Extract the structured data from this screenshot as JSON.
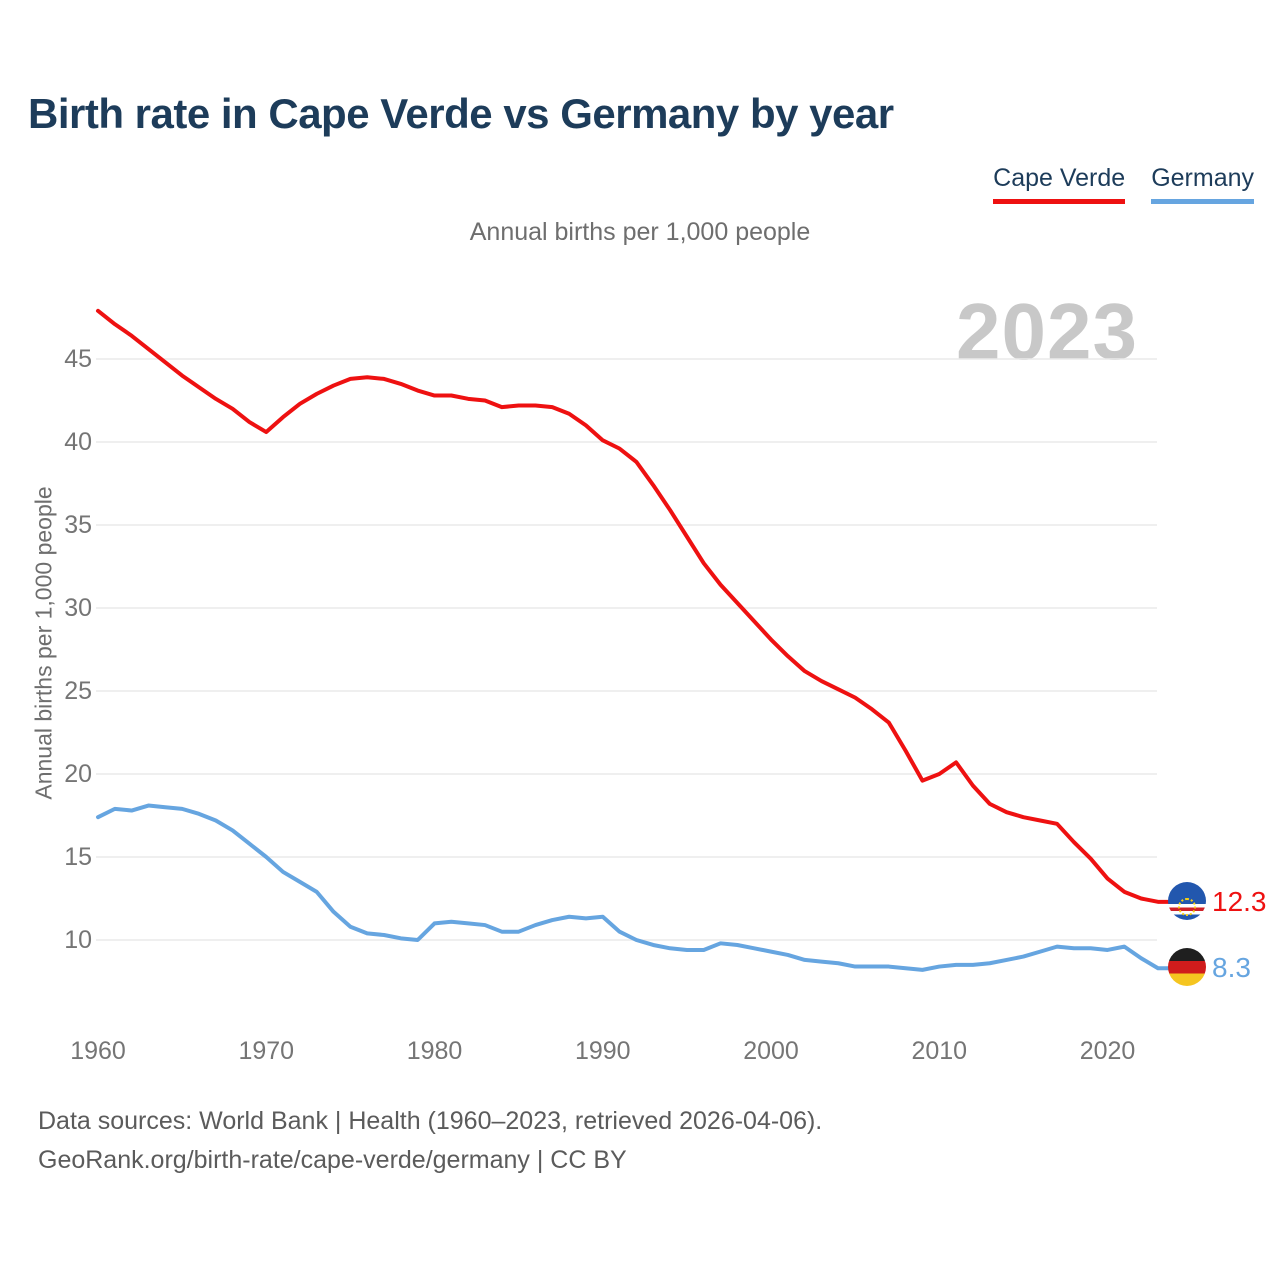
{
  "page": {
    "title": "Birth rate in Cape Verde vs Germany by year",
    "subtitle": "Annual births per 1,000 people",
    "watermark": "2023",
    "footer_line1": "Data sources: World Bank | Health (1960–2023, retrieved 2026-04-06).",
    "footer_line2": "GeoRank.org/birth-rate/cape-verde/germany | CC BY"
  },
  "legend": {
    "position": "top-right",
    "series1": {
      "label": "Cape Verde",
      "color": "#ee1111"
    },
    "series2": {
      "label": "Germany",
      "color": "#66a5e0"
    }
  },
  "end_labels": {
    "cape_verde": {
      "value": "12.3",
      "flag": "cape-verde-flag",
      "color": "#ee1111"
    },
    "germany": {
      "value": "8.3",
      "flag": "germany-flag",
      "color": "#66a5e0"
    }
  },
  "colors": {
    "title_navy": "#1d3c5a",
    "gridline": "#eaeaea",
    "tick_text": "#757575",
    "watermark_gray": "#c8c8c8"
  },
  "chart_data": {
    "type": "line",
    "title": "Birth rate in Cape Verde vs Germany by year",
    "subtitle": "Annual births per 1,000 people",
    "xlabel": "",
    "ylabel": "Annual births per 1,000 people",
    "grid": "horizontal",
    "legend_position": "top-right",
    "x_ticks": [
      1960,
      1970,
      1980,
      1990,
      2000,
      2010,
      2020
    ],
    "y_ticks": [
      10,
      15,
      20,
      25,
      30,
      35,
      40,
      45
    ],
    "xlim": [
      1960,
      2023
    ],
    "ylim": [
      7.5,
      49
    ],
    "years": [
      1960,
      1961,
      1962,
      1963,
      1964,
      1965,
      1966,
      1967,
      1968,
      1969,
      1970,
      1971,
      1972,
      1973,
      1974,
      1975,
      1976,
      1977,
      1978,
      1979,
      1980,
      1981,
      1982,
      1983,
      1984,
      1985,
      1986,
      1987,
      1988,
      1989,
      1990,
      1991,
      1992,
      1993,
      1994,
      1995,
      1996,
      1997,
      1998,
      1999,
      2000,
      2001,
      2002,
      2003,
      2004,
      2005,
      2006,
      2007,
      2008,
      2009,
      2010,
      2011,
      2012,
      2013,
      2014,
      2015,
      2016,
      2017,
      2018,
      2019,
      2020,
      2021,
      2022,
      2023
    ],
    "series": [
      {
        "name": "Cape Verde",
        "color": "#ee1111",
        "end_label": "12.3",
        "values": [
          47.9,
          47.1,
          46.4,
          45.6,
          44.8,
          44.0,
          43.3,
          42.6,
          42.0,
          41.2,
          40.6,
          41.5,
          42.3,
          42.9,
          43.4,
          43.8,
          43.9,
          43.8,
          43.5,
          43.1,
          42.8,
          42.8,
          42.6,
          42.5,
          42.1,
          42.2,
          42.2,
          42.1,
          41.7,
          41.0,
          40.1,
          39.6,
          38.8,
          37.4,
          35.9,
          34.3,
          32.7,
          31.4,
          30.3,
          29.2,
          28.1,
          27.1,
          26.2,
          25.6,
          25.1,
          24.6,
          23.9,
          23.1,
          21.4,
          19.6,
          20.0,
          20.7,
          19.3,
          18.2,
          17.7,
          17.4,
          17.2,
          17.0,
          15.9,
          14.9,
          13.7,
          12.9,
          12.5,
          12.3
        ]
      },
      {
        "name": "Germany",
        "color": "#66a5e0",
        "end_label": "8.3",
        "values": [
          17.4,
          17.9,
          17.8,
          18.1,
          18.0,
          17.9,
          17.6,
          17.2,
          16.6,
          15.8,
          15.0,
          14.1,
          13.5,
          12.9,
          11.7,
          10.8,
          10.4,
          10.3,
          10.1,
          10.0,
          11.0,
          11.1,
          11.0,
          10.9,
          10.5,
          10.5,
          10.9,
          11.2,
          11.4,
          11.3,
          11.4,
          10.5,
          10.0,
          9.7,
          9.5,
          9.4,
          9.4,
          9.8,
          9.7,
          9.5,
          9.3,
          9.1,
          8.8,
          8.7,
          8.6,
          8.4,
          8.4,
          8.4,
          8.3,
          8.2,
          8.4,
          8.5,
          8.5,
          8.6,
          8.8,
          9.0,
          9.3,
          9.6,
          9.5,
          9.5,
          9.4,
          9.6,
          8.9,
          8.3
        ]
      }
    ]
  }
}
